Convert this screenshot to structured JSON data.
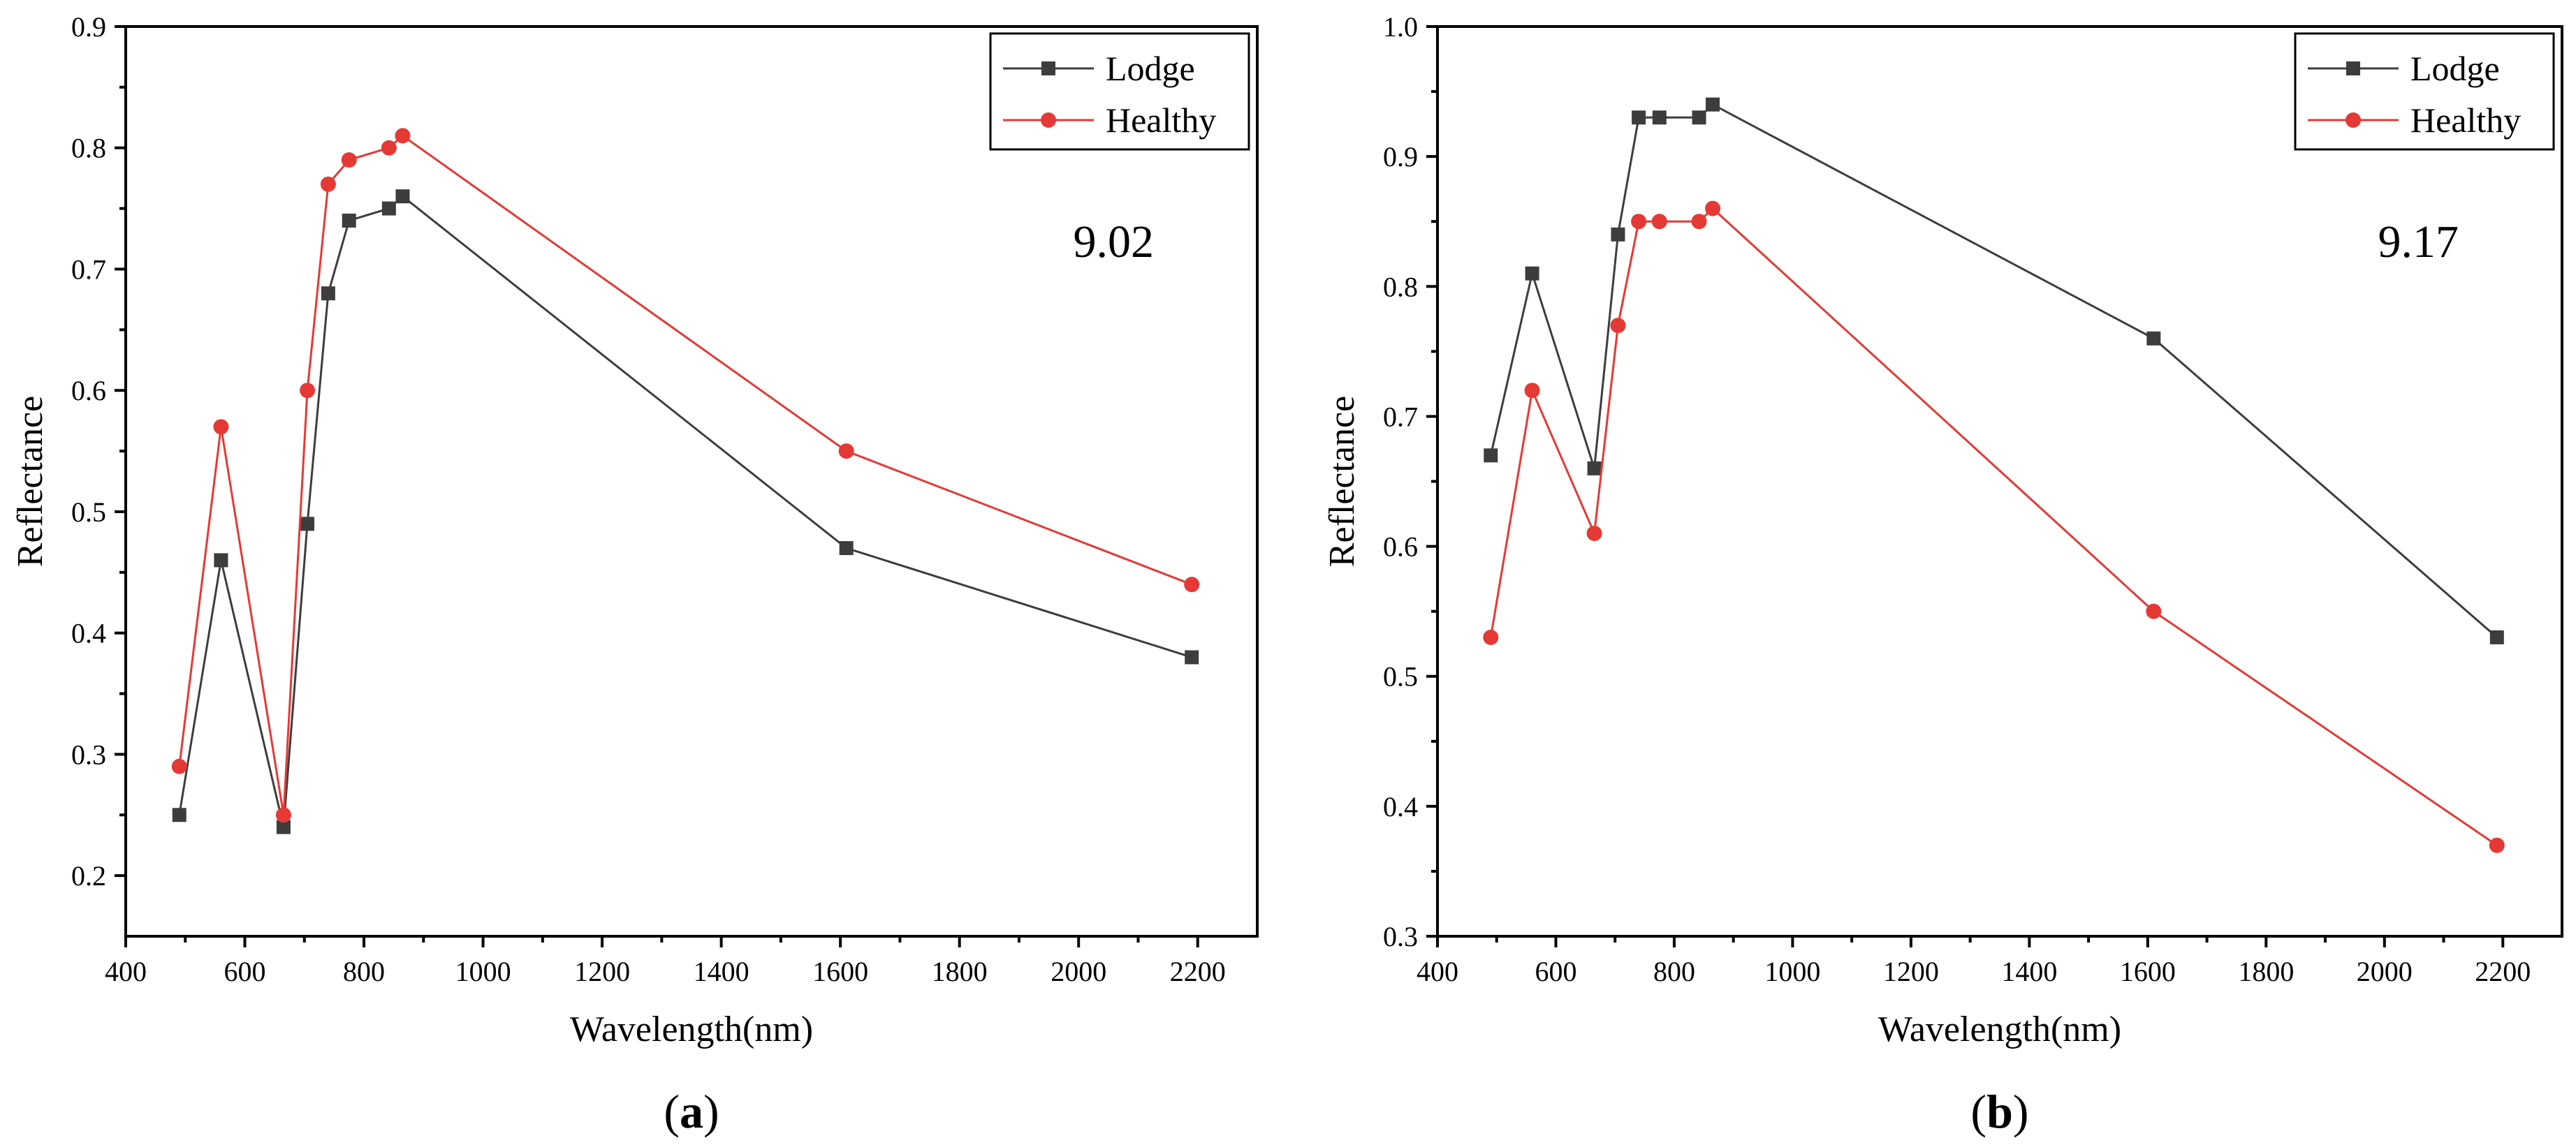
{
  "figure": {
    "panels": [
      "(a)",
      "(b)"
    ]
  },
  "colors": {
    "lodge": "#3d3d3d",
    "healthy": "#e53935"
  },
  "chart_data": [
    {
      "type": "line",
      "panel_label_prefix": "(",
      "panel_label_letter": "a",
      "panel_label_suffix": ")",
      "annotation": "9.02",
      "xlabel": "Wavelength(nm)",
      "ylabel": "Reflectance",
      "xlim": [
        400,
        2300
      ],
      "ylim": [
        0.15,
        0.9
      ],
      "xticks": [
        400,
        600,
        800,
        1000,
        1200,
        1400,
        1600,
        1800,
        2000,
        2200
      ],
      "xtick_labels": [
        "400",
        "600",
        "800",
        "1000",
        "1200",
        "1400",
        "1600",
        "1800",
        "2000",
        "2200"
      ],
      "yticks": [
        0.2,
        0.3,
        0.4,
        0.5,
        0.6,
        0.7,
        0.8,
        0.9
      ],
      "ytick_labels": [
        "0.2",
        "0.3",
        "0.4",
        "0.5",
        "0.6",
        "0.7",
        "0.8",
        "0.9"
      ],
      "legend_position": "top-right",
      "x": [
        490,
        560,
        665,
        705,
        740,
        775,
        842,
        865,
        1610,
        2190
      ],
      "series": [
        {
          "name": "Lodge",
          "marker": "square",
          "color": "#3d3d3d",
          "values": [
            0.25,
            0.46,
            0.24,
            0.49,
            0.68,
            0.74,
            0.75,
            0.76,
            0.47,
            0.38
          ]
        },
        {
          "name": "Healthy",
          "marker": "circle",
          "color": "#e53935",
          "values": [
            0.29,
            0.57,
            0.25,
            0.6,
            0.77,
            0.79,
            0.8,
            0.81,
            0.55,
            0.44
          ]
        }
      ]
    },
    {
      "type": "line",
      "panel_label_prefix": "(",
      "panel_label_letter": "b",
      "panel_label_suffix": ")",
      "annotation": "9.17",
      "xlabel": "Wavelength(nm)",
      "ylabel": "Reflectance",
      "xlim": [
        400,
        2300
      ],
      "ylim": [
        0.3,
        1.0
      ],
      "xticks": [
        400,
        600,
        800,
        1000,
        1200,
        1400,
        1600,
        1800,
        2000,
        2200
      ],
      "xtick_labels": [
        "400",
        "600",
        "800",
        "1000",
        "1200",
        "1400",
        "1600",
        "1800",
        "2000",
        "2200"
      ],
      "yticks": [
        0.3,
        0.4,
        0.5,
        0.6,
        0.7,
        0.8,
        0.9,
        1.0
      ],
      "ytick_labels": [
        "0.3",
        "0.4",
        "0.5",
        "0.6",
        "0.7",
        "0.8",
        "0.9",
        "1.0"
      ],
      "legend_position": "top-right",
      "x": [
        490,
        560,
        665,
        705,
        740,
        775,
        842,
        865,
        1610,
        2190
      ],
      "series": [
        {
          "name": "Lodge",
          "marker": "square",
          "color": "#3d3d3d",
          "values": [
            0.67,
            0.81,
            0.66,
            0.84,
            0.93,
            0.93,
            0.93,
            0.94,
            0.76,
            0.53
          ]
        },
        {
          "name": "Healthy",
          "marker": "circle",
          "color": "#e53935",
          "values": [
            0.53,
            0.72,
            0.61,
            0.77,
            0.85,
            0.85,
            0.85,
            0.86,
            0.55,
            0.37
          ]
        }
      ]
    }
  ]
}
